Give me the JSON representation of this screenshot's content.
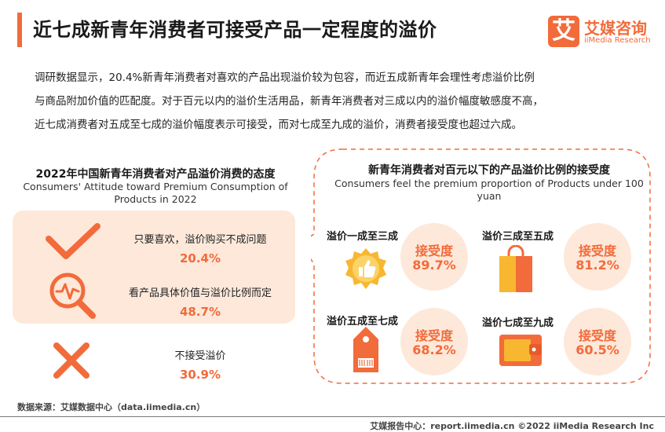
{
  "header": {
    "title": "近七成新青年消费者可接受产品一定程度的溢价",
    "logo_mark": "艾",
    "logo_cn": "艾媒咨询",
    "logo_en": "iiMedia Research"
  },
  "intro": [
    "调研数据显示，20.4%新青年消费者对喜欢的产品出现溢价较为包容，而近五成新青年会理性考虑溢价比例",
    "与商品附加价值的匹配度。对于百元以内的溢价生活用品，新青年消费者对三成以内的溢价幅度敏感度不高，",
    "近七成消费者对五成至七成的溢价幅度表示可接受，而对七成至九成的溢价，消费者接受度也超过六成。"
  ],
  "colors": {
    "accent": "#f26b3a",
    "accent_light": "#fde8da",
    "icon_yellow": "#f7b731"
  },
  "chart_data": [
    {
      "type": "table",
      "title": "2022年中国新青年消费者对产品溢价消费的态度",
      "subtitle": "Consumers'   Attitude toward Premium Consumption of Products in 2022",
      "categories": [
        "只要喜欢，溢价购买不成问题",
        "看产品具体价值与溢价比例而定",
        "不接受溢价"
      ],
      "values": [
        20.4,
        48.7,
        30.9
      ],
      "value_labels": [
        "20.4%",
        "48.7%",
        "30.9%"
      ],
      "icons": [
        "checkmark-icon",
        "magnifier-pulse-icon",
        "cross-icon"
      ]
    },
    {
      "type": "table",
      "title": "新青年消费者对百元以下的产品溢价比例的接受度",
      "subtitle": "Consumers feel the premium proportion of Products under 100 yuan",
      "categories": [
        "溢价一成至三成",
        "溢价三成至五成",
        "溢价五成至七成",
        "溢价七成至九成"
      ],
      "metric_label": "接受度",
      "values": [
        89.7,
        81.2,
        68.2,
        60.5
      ],
      "value_labels": [
        "89.7%",
        "81.2%",
        "68.2%",
        "60.5%"
      ],
      "icons": [
        "thumbs-up-badge-icon",
        "shopping-bag-icon",
        "price-tag-icon",
        "wallet-icon"
      ]
    }
  ],
  "source": "数据来源：艾媒数据中心（data.iimedia.cn）",
  "footer": "艾媒报告中心：report.iimedia.cn   ©2022  iiMedia Research  Inc"
}
